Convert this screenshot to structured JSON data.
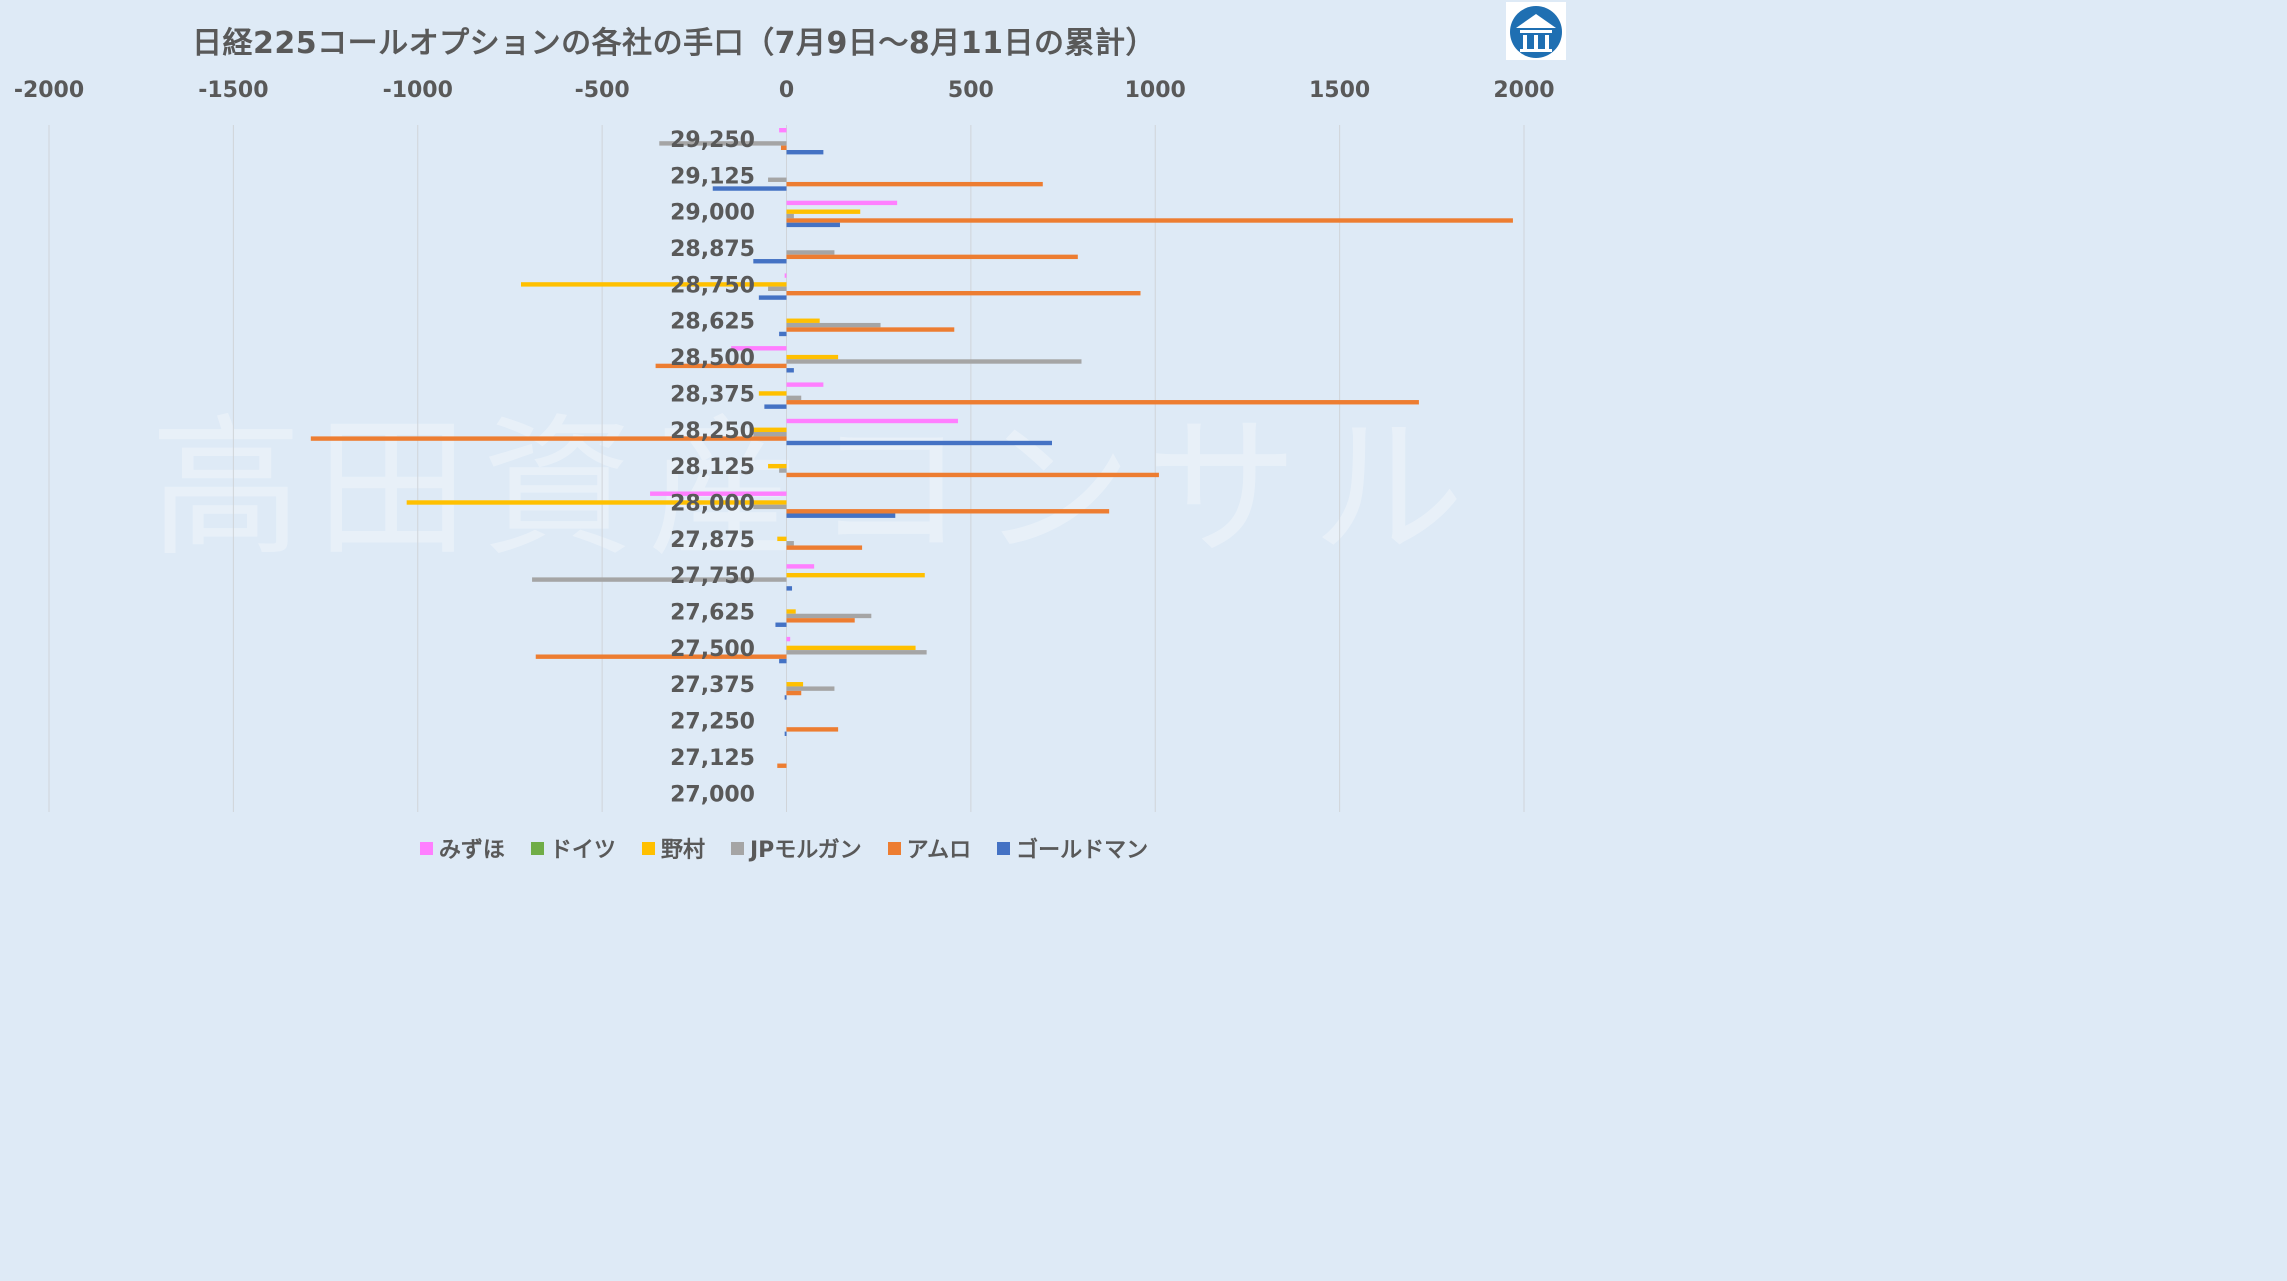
{
  "chart_data": {
    "type": "bar",
    "orientation": "horizontal",
    "title": "日経225コールオプションの各社の手口（7月9日～8月11日の累計）",
    "xlim": [
      -2000,
      2000
    ],
    "xticks": [
      "-2000",
      "-1500",
      "-1000",
      "-500",
      "0",
      "500",
      "1000",
      "1500",
      "2000"
    ],
    "xtick_values": [
      -2000,
      -1500,
      -1000,
      -500,
      0,
      500,
      1000,
      1500,
      2000
    ],
    "grid": true,
    "legend_position": "bottom",
    "categories": [
      "29,250",
      "29,125",
      "29,000",
      "28,875",
      "28,750",
      "28,625",
      "28,500",
      "28,375",
      "28,250",
      "28,125",
      "28,000",
      "27,875",
      "27,750",
      "27,625",
      "27,500",
      "27,375",
      "27,250",
      "27,125",
      "27,000"
    ],
    "series": [
      {
        "name": "みずほ",
        "color": "#ff7fff",
        "values": [
          -20,
          0,
          300,
          0,
          -5,
          0,
          -150,
          100,
          465,
          0,
          -370,
          0,
          75,
          0,
          10,
          0,
          0,
          0,
          0
        ]
      },
      {
        "name": "ドイツ",
        "color": "#70ad47",
        "values": [
          0,
          0,
          0,
          0,
          0,
          0,
          0,
          0,
          0,
          0,
          0,
          0,
          0,
          0,
          0,
          0,
          0,
          0,
          0
        ]
      },
      {
        "name": "野村",
        "color": "#ffc000",
        "values": [
          0,
          0,
          200,
          0,
          -720,
          90,
          140,
          -75,
          -90,
          -50,
          -1030,
          -25,
          375,
          25,
          350,
          45,
          0,
          0,
          0
        ]
      },
      {
        "name": "JPモルガン",
        "color": "#a5a5a5",
        "values": [
          -345,
          -50,
          20,
          130,
          -50,
          255,
          800,
          40,
          -90,
          -20,
          -90,
          20,
          -690,
          230,
          380,
          130,
          0,
          0,
          0
        ]
      },
      {
        "name": "アムロ",
        "color": "#ed7d31",
        "values": [
          -15,
          695,
          1970,
          790,
          960,
          455,
          -355,
          1715,
          -1290,
          1010,
          875,
          205,
          0,
          185,
          -680,
          40,
          140,
          -25,
          0
        ]
      },
      {
        "name": "ゴールドマン",
        "color": "#4472c4",
        "values": [
          100,
          -200,
          145,
          -90,
          -75,
          -20,
          20,
          -60,
          720,
          0,
          295,
          0,
          15,
          -30,
          -20,
          -5,
          -5,
          0,
          0
        ]
      }
    ]
  },
  "watermark": "高田資産コンサル",
  "logo": {
    "icon": "building-logo-icon",
    "color": "#1f6fb2"
  }
}
